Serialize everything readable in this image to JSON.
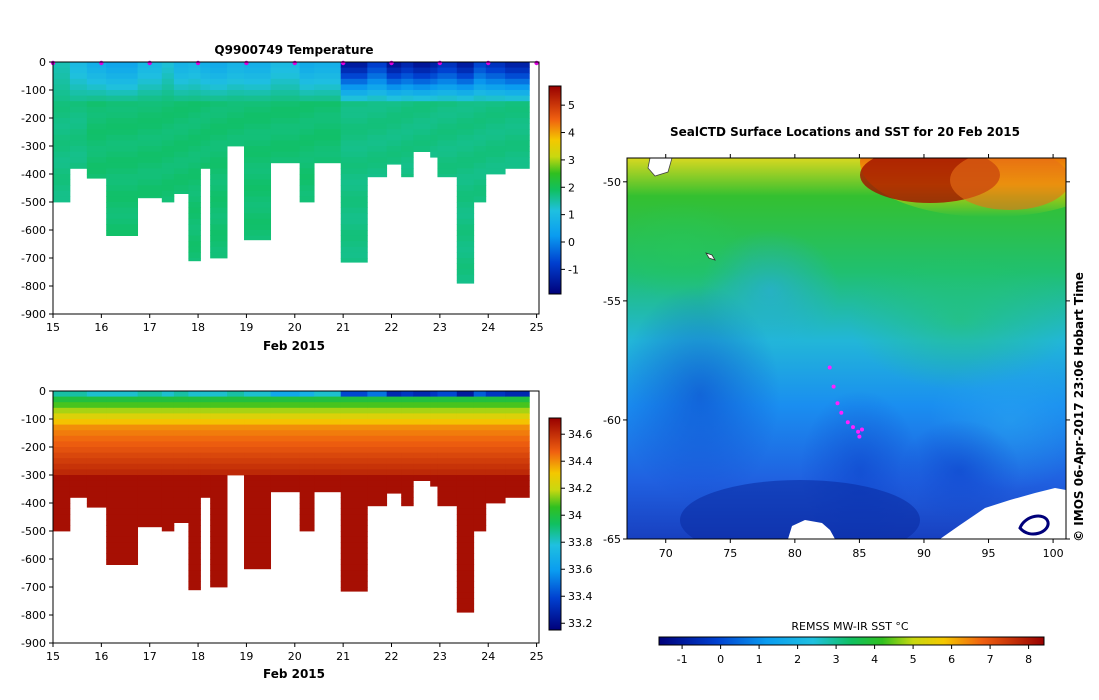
{
  "chart_data": [
    {
      "type": "heatmap",
      "title": "Q9900749  Temperature",
      "xlabel": "Feb 2015",
      "ylabel": "",
      "x_ticks": [
        "15",
        "16",
        "17",
        "18",
        "19",
        "20",
        "21",
        "22",
        "23",
        "24",
        "25"
      ],
      "y_ticks": [
        "0",
        "-100",
        "-200",
        "-300",
        "-400",
        "-500",
        "-600",
        "-700",
        "-800",
        "-900"
      ],
      "xlim": [
        15,
        25.05
      ],
      "ylim": [
        -900,
        0
      ],
      "colorbar": {
        "min": -1.9,
        "max": 5.7,
        "ticks": [
          "5",
          "4",
          "3",
          "2",
          "1",
          "0",
          "-1"
        ],
        "tick_values": [
          5,
          4,
          3,
          2,
          1,
          0,
          -1
        ]
      },
      "profiles": [
        {
          "t0": 15.0,
          "t1": 15.35,
          "depth": 500,
          "surface": 1.4,
          "deep": 1.7
        },
        {
          "t0": 15.35,
          "t1": 15.7,
          "depth": 380,
          "surface": 1.0,
          "deep": 1.7
        },
        {
          "t0": 15.7,
          "t1": 16.1,
          "depth": 415,
          "surface": 0.7,
          "deep": 1.8
        },
        {
          "t0": 16.1,
          "t1": 16.75,
          "depth": 620,
          "surface": 0.5,
          "deep": 1.8
        },
        {
          "t0": 16.75,
          "t1": 17.25,
          "depth": 485,
          "surface": 0.9,
          "deep": 1.8
        },
        {
          "t0": 17.25,
          "t1": 17.5,
          "depth": 500,
          "surface": 1.2,
          "deep": 1.8
        },
        {
          "t0": 17.5,
          "t1": 17.8,
          "depth": 470,
          "surface": 0.8,
          "deep": 1.8
        },
        {
          "t0": 17.8,
          "t1": 18.05,
          "depth": 710,
          "surface": 0.9,
          "deep": 1.8
        },
        {
          "t0": 18.05,
          "t1": 18.25,
          "depth": 380,
          "surface": 0.7,
          "deep": 1.8
        },
        {
          "t0": 18.25,
          "t1": 18.6,
          "depth": 700,
          "surface": 0.6,
          "deep": 1.8
        },
        {
          "t0": 18.6,
          "t1": 18.95,
          "depth": 300,
          "surface": 0.8,
          "deep": 1.8
        },
        {
          "t0": 18.95,
          "t1": 19.5,
          "depth": 635,
          "surface": 0.7,
          "deep": 1.8
        },
        {
          "t0": 19.5,
          "t1": 20.1,
          "depth": 360,
          "surface": 1.0,
          "deep": 1.8
        },
        {
          "t0": 20.1,
          "t1": 20.4,
          "depth": 500,
          "surface": 0.6,
          "deep": 1.8
        },
        {
          "t0": 20.4,
          "t1": 20.95,
          "depth": 360,
          "surface": 0.7,
          "deep": 1.8
        },
        {
          "t0": 20.95,
          "t1": 21.5,
          "depth": 715,
          "surface": -1.4,
          "deep": 1.7
        },
        {
          "t0": 21.5,
          "t1": 21.9,
          "depth": 410,
          "surface": -0.8,
          "deep": 1.7
        },
        {
          "t0": 21.9,
          "t1": 22.2,
          "depth": 365,
          "surface": -1.5,
          "deep": 1.7
        },
        {
          "t0": 22.2,
          "t1": 22.45,
          "depth": 410,
          "surface": -1.2,
          "deep": 1.7
        },
        {
          "t0": 22.45,
          "t1": 22.8,
          "depth": 320,
          "surface": -1.5,
          "deep": 1.7
        },
        {
          "t0": 22.8,
          "t1": 22.95,
          "depth": 340,
          "surface": -1.3,
          "deep": 1.7
        },
        {
          "t0": 22.95,
          "t1": 23.35,
          "depth": 410,
          "surface": -1.0,
          "deep": 1.7
        },
        {
          "t0": 23.35,
          "t1": 23.7,
          "depth": 790,
          "surface": -1.4,
          "deep": 1.7
        },
        {
          "t0": 23.7,
          "t1": 23.95,
          "depth": 500,
          "surface": -0.7,
          "deep": 1.7
        },
        {
          "t0": 23.95,
          "t1": 24.35,
          "depth": 400,
          "surface": -1.0,
          "deep": 1.7
        },
        {
          "t0": 24.35,
          "t1": 24.85,
          "depth": 380,
          "surface": -1.3,
          "deep": 1.7
        }
      ],
      "surface_markers": [
        15.0,
        16.0,
        17.0,
        18.0,
        19.0,
        20.0,
        21.0,
        22.0,
        23.0,
        24.0,
        25.0
      ]
    },
    {
      "type": "heatmap",
      "title": "",
      "xlabel": "Feb 2015",
      "ylabel": "",
      "x_ticks": [
        "15",
        "16",
        "17",
        "18",
        "19",
        "20",
        "21",
        "22",
        "23",
        "24",
        "25"
      ],
      "y_ticks": [
        "0",
        "-100",
        "-200",
        "-300",
        "-400",
        "-500",
        "-600",
        "-700",
        "-800",
        "-900"
      ],
      "xlim": [
        15,
        25.05
      ],
      "ylim": [
        -900,
        0
      ],
      "colorbar": {
        "min": 33.15,
        "max": 34.72,
        "ticks": [
          "34.6",
          "34.4",
          "34.2",
          "34",
          "33.8",
          "33.6",
          "33.4",
          "33.2"
        ],
        "tick_values": [
          34.6,
          34.4,
          34.2,
          34.0,
          33.8,
          33.6,
          33.4,
          33.2
        ]
      },
      "surface_salinity": [
        33.85,
        33.85,
        33.8,
        33.8,
        33.85,
        33.8,
        33.85,
        33.8,
        33.8,
        33.8,
        33.85,
        33.8,
        33.65,
        33.7,
        33.8,
        33.4,
        33.5,
        33.3,
        33.35,
        33.3,
        33.35,
        33.4,
        33.25,
        33.45,
        33.35,
        33.3
      ]
    },
    {
      "type": "heatmap",
      "title": "SealCTD Surface Locations and SST for 20 Feb 2015",
      "x_ticks": [
        "70",
        "75",
        "80",
        "85",
        "90",
        "95",
        "100"
      ],
      "y_ticks": [
        "-50",
        "-55",
        "-60",
        "-65"
      ],
      "xlim": [
        67,
        101
      ],
      "ylim": [
        -65,
        -49
      ],
      "colorbar_label": "REMSS MW-IR SST °C",
      "colorbar": {
        "min": -1.6,
        "max": 8.4,
        "ticks": [
          "-1",
          "0",
          "1",
          "2",
          "3",
          "4",
          "5",
          "6",
          "7",
          "8"
        ],
        "tick_values": [
          -1,
          0,
          1,
          2,
          3,
          4,
          5,
          6,
          7,
          8
        ]
      },
      "seal_track": [
        {
          "lon": 82.7,
          "lat": -57.8
        },
        {
          "lon": 83.0,
          "lat": -58.6
        },
        {
          "lon": 83.3,
          "lat": -59.3
        },
        {
          "lon": 83.6,
          "lat": -59.7
        },
        {
          "lon": 84.1,
          "lat": -60.1
        },
        {
          "lon": 84.5,
          "lat": -60.3
        },
        {
          "lon": 84.9,
          "lat": -60.5
        },
        {
          "lon": 85.2,
          "lat": -60.4
        },
        {
          "lon": 85.0,
          "lat": -60.7
        }
      ]
    }
  ],
  "credit": "© IMOS 06-Apr-2017 23:06 Hobart Time"
}
